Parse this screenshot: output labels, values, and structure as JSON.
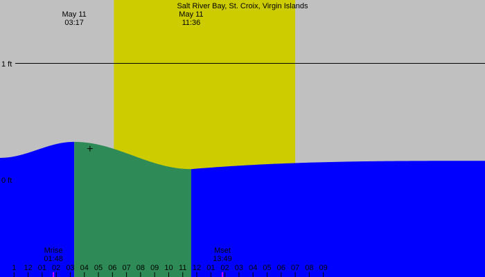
{
  "chart_data": {
    "type": "area",
    "title": "Salt River Bay, St. Croix, Virgin Islands",
    "y_unit": "ft",
    "y_ticks": [
      {
        "label": "1 ft",
        "value": 1
      },
      {
        "label": "0 ft",
        "value": 0
      }
    ],
    "x_start_hour": 22.0,
    "x_end_hour": 56.5,
    "x_ticks": [
      "1",
      "12",
      "01",
      "02",
      "03",
      "04",
      "05",
      "06",
      "07",
      "08",
      "09",
      "10",
      "11",
      "12",
      "01",
      "02",
      "03",
      "04",
      "05",
      "06",
      "07",
      "08",
      "09"
    ],
    "x_tick_first_hour": 23,
    "tides": [
      {
        "type": "high",
        "date": "May 11",
        "time": "03:17",
        "hour": 27.28,
        "height": 0.34
      },
      {
        "type": "low",
        "date": "May 11",
        "time": "11:36",
        "hour": 35.6,
        "height": 0.11
      }
    ],
    "curve": {
      "start_hour": 22.0,
      "start_height": 0.205,
      "end_height": 0.18
    },
    "daylight": {
      "sunrise_hour": 30.1,
      "sunset_hour": 43.0
    },
    "moon": [
      {
        "label": "Mrise",
        "time": "01:48",
        "hour": 25.8
      },
      {
        "label": "Mset",
        "time": "13:49",
        "hour": 37.82
      }
    ],
    "cursor": {
      "hour": 28.4,
      "height": 0.283
    },
    "colors": {
      "background": "#c0c0c0",
      "daylight": "#cccc00",
      "tide_night": "#0000ff",
      "tide_day": "#2e8b57",
      "reference_line": "#000000",
      "moon_marker": "#ff00ff"
    }
  }
}
